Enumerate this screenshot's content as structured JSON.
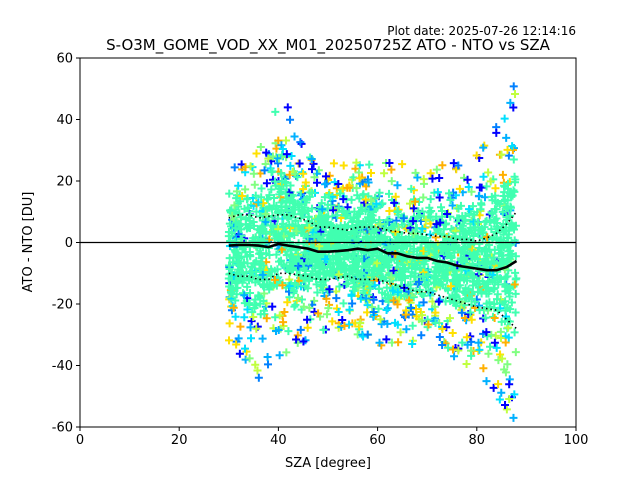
{
  "plot_date": "Plot date: 2025-07-26 12:14:16",
  "title": "S-O3M_GOME_VOD_XX_M01_20250725Z ATO - NTO vs SZA",
  "colors": {
    "zero_line": "#000000",
    "scatter_palette": [
      "#0000ff",
      "#0080ff",
      "#00b0ff",
      "#00e0ff",
      "#40ffb0",
      "#80ff80",
      "#c0ff40",
      "#ffe000",
      "#ffb000"
    ],
    "dominant_fill": "#40ffb0",
    "mean_line": "#000000"
  },
  "chart_data": {
    "type": "scatter",
    "xlabel": "SZA [degree]",
    "ylabel": "ATO - NTO [DU]",
    "xlim": [
      0,
      100
    ],
    "ylim": [
      -60,
      60
    ],
    "xticks": [
      0,
      20,
      40,
      60,
      80,
      100
    ],
    "yticks": [
      -60,
      -40,
      -20,
      0,
      20,
      40,
      60
    ],
    "grid": false,
    "zero_line": 0,
    "scatter_extent": {
      "x_min": 30,
      "x_max": 88,
      "upper_envelope": [
        [
          30,
          25
        ],
        [
          33,
          27
        ],
        [
          36,
          30
        ],
        [
          38,
          40
        ],
        [
          40,
          47
        ],
        [
          42,
          45
        ],
        [
          44,
          35
        ],
        [
          46,
          28
        ],
        [
          50,
          27
        ],
        [
          55,
          26
        ],
        [
          60,
          27
        ],
        [
          65,
          26
        ],
        [
          70,
          24
        ],
        [
          75,
          26
        ],
        [
          80,
          30
        ],
        [
          84,
          38
        ],
        [
          86,
          46
        ],
        [
          88,
          55
        ]
      ],
      "lower_envelope": [
        [
          30,
          -32
        ],
        [
          33,
          -38
        ],
        [
          36,
          -45
        ],
        [
          38,
          -42
        ],
        [
          40,
          -38
        ],
        [
          42,
          -36
        ],
        [
          44,
          -33
        ],
        [
          48,
          -30
        ],
        [
          52,
          -28
        ],
        [
          56,
          -30
        ],
        [
          60,
          -34
        ],
        [
          64,
          -34
        ],
        [
          68,
          -35
        ],
        [
          72,
          -33
        ],
        [
          76,
          -38
        ],
        [
          80,
          -42
        ],
        [
          84,
          -50
        ],
        [
          86,
          -55
        ],
        [
          88,
          -58
        ]
      ]
    },
    "series": [
      {
        "name": "mean",
        "style": "solid-thick",
        "x": [
          30,
          32,
          34,
          36,
          38,
          40,
          42,
          44,
          46,
          48,
          50,
          52,
          54,
          56,
          58,
          60,
          62,
          64,
          66,
          68,
          70,
          72,
          74,
          76,
          78,
          80,
          82,
          84,
          86,
          88
        ],
        "y": [
          -1,
          -0.8,
          -0.8,
          -1,
          -1.5,
          -0.5,
          -1,
          -1.5,
          -2,
          -3,
          -3,
          -2.8,
          -2.5,
          -2,
          -2.5,
          -2,
          -3.5,
          -3.5,
          -4.5,
          -5,
          -5,
          -6,
          -6.5,
          -7.5,
          -8,
          -8.5,
          -9,
          -9,
          -8,
          -6
        ]
      },
      {
        "name": "upper",
        "style": "dotted",
        "x": [
          30,
          32,
          34,
          36,
          38,
          40,
          42,
          44,
          46,
          48,
          50,
          52,
          54,
          56,
          58,
          60,
          62,
          64,
          66,
          68,
          70,
          72,
          74,
          76,
          78,
          80,
          82,
          84,
          86,
          88
        ],
        "y": [
          8,
          9,
          9,
          8,
          8.5,
          9,
          9,
          8,
          7,
          5,
          5,
          4.5,
          4,
          5,
          5,
          5,
          4,
          3.5,
          3,
          3,
          2.5,
          2,
          2,
          1,
          1,
          0.5,
          1.5,
          3,
          6,
          10
        ]
      },
      {
        "name": "lower",
        "style": "dotted",
        "x": [
          30,
          32,
          34,
          36,
          38,
          40,
          42,
          44,
          46,
          48,
          50,
          52,
          54,
          56,
          58,
          60,
          62,
          64,
          66,
          68,
          70,
          72,
          74,
          76,
          78,
          80,
          82,
          84,
          86,
          88
        ],
        "y": [
          -10,
          -11,
          -11,
          -12,
          -12,
          -10,
          -10,
          -10.5,
          -11,
          -12,
          -12,
          -11.5,
          -11,
          -12,
          -12,
          -12,
          -13,
          -14,
          -15,
          -16,
          -16,
          -17,
          -18,
          -19,
          -20,
          -21,
          -21.5,
          -22,
          -25,
          -28
        ]
      }
    ]
  }
}
